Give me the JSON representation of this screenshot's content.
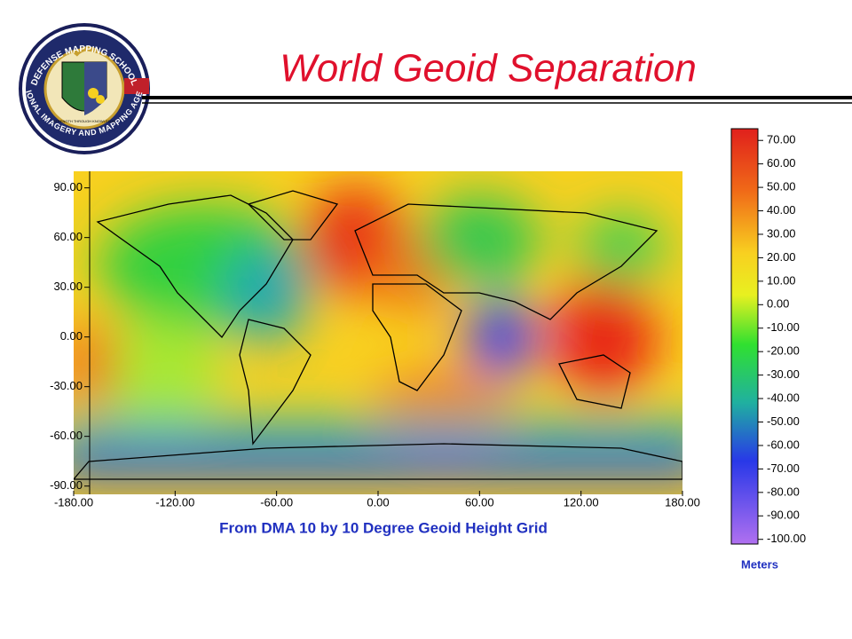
{
  "header": {
    "title": "World Geoid Separation"
  },
  "logo": {
    "top_text": "DEFENSE MAPPING SCHOOL",
    "bottom_text": "NATIONAL IMAGERY AND MAPPING AGENCY",
    "motto": "STRENGTH THROUGH KNOWLEDGE"
  },
  "map": {
    "caption": "From DMA 10 by 10 Degree Geoid Height Grid",
    "xlim": [
      -180,
      180
    ],
    "ylim": [
      -95,
      100
    ],
    "xticks": [
      {
        "value": -180,
        "label": "-180.00"
      },
      {
        "value": -120,
        "label": "-120.00"
      },
      {
        "value": -60,
        "label": "-60.00"
      },
      {
        "value": 0,
        "label": "0.00"
      },
      {
        "value": 60,
        "label": "60.00"
      },
      {
        "value": 120,
        "label": "120.00"
      },
      {
        "value": 180,
        "label": "180.00"
      }
    ],
    "yticks": [
      {
        "value": 90,
        "label": "90.00"
      },
      {
        "value": 60,
        "label": "60.00"
      },
      {
        "value": 30,
        "label": "30.00"
      },
      {
        "value": 0,
        "label": "0.00"
      },
      {
        "value": -30,
        "label": "-30.00"
      },
      {
        "value": -60,
        "label": "-60.00"
      },
      {
        "value": -90,
        "label": "-90.00"
      }
    ]
  },
  "colorbar": {
    "unit": "Meters",
    "lim": [
      -102,
      75
    ],
    "ticks": [
      {
        "value": 70,
        "label": "70.00"
      },
      {
        "value": 60,
        "label": "60.00"
      },
      {
        "value": 50,
        "label": "50.00"
      },
      {
        "value": 40,
        "label": "40.00"
      },
      {
        "value": 30,
        "label": "30.00"
      },
      {
        "value": 20,
        "label": "20.00"
      },
      {
        "value": 10,
        "label": "10.00"
      },
      {
        "value": 0,
        "label": "0.00"
      },
      {
        "value": -10,
        "label": "-10.00"
      },
      {
        "value": -20,
        "label": "-20.00"
      },
      {
        "value": -30,
        "label": "-30.00"
      },
      {
        "value": -40,
        "label": "-40.00"
      },
      {
        "value": -50,
        "label": "-50.00"
      },
      {
        "value": -60,
        "label": "-60.00"
      },
      {
        "value": -70,
        "label": "-70.00"
      },
      {
        "value": -80,
        "label": "-80.00"
      },
      {
        "value": -90,
        "label": "-90.00"
      },
      {
        "value": -100,
        "label": "-100.00"
      }
    ]
  }
}
